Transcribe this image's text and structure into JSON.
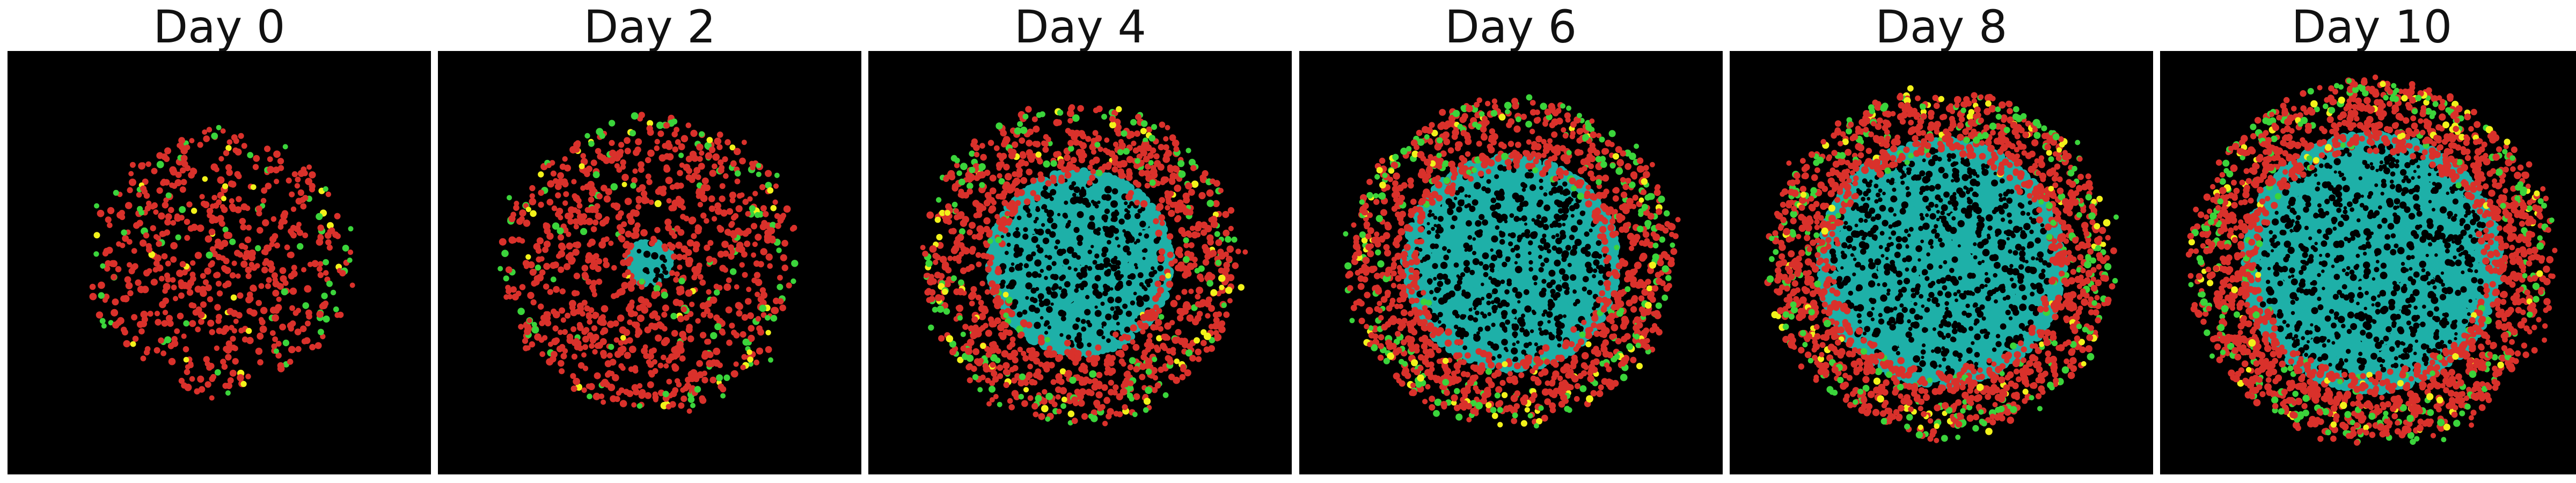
{
  "figure": {
    "panels": [
      {
        "title": "Day 0",
        "colony_radius": 0.3,
        "core_fraction": 0.0,
        "density": 1.0
      },
      {
        "title": "Day 2",
        "colony_radius": 0.34,
        "core_fraction": 0.15,
        "density": 1.3
      },
      {
        "title": "Day 4",
        "colony_radius": 0.37,
        "core_fraction": 0.58,
        "density": 1.7
      },
      {
        "title": "Day 6",
        "colony_radius": 0.38,
        "core_fraction": 0.66,
        "density": 2.0
      },
      {
        "title": "Day 8",
        "colony_radius": 0.4,
        "core_fraction": 0.72,
        "density": 2.3
      },
      {
        "title": "Day 10",
        "colony_radius": 0.42,
        "core_fraction": 0.72,
        "density": 2.5
      }
    ],
    "colors": {
      "background": "#000000",
      "proliferating": "#d9312b",
      "quiescent": "#3bd43b",
      "transitioning": "#f2f21a",
      "necrotic": "#1eb0a8",
      "necrotic_gap": "#000000"
    }
  }
}
